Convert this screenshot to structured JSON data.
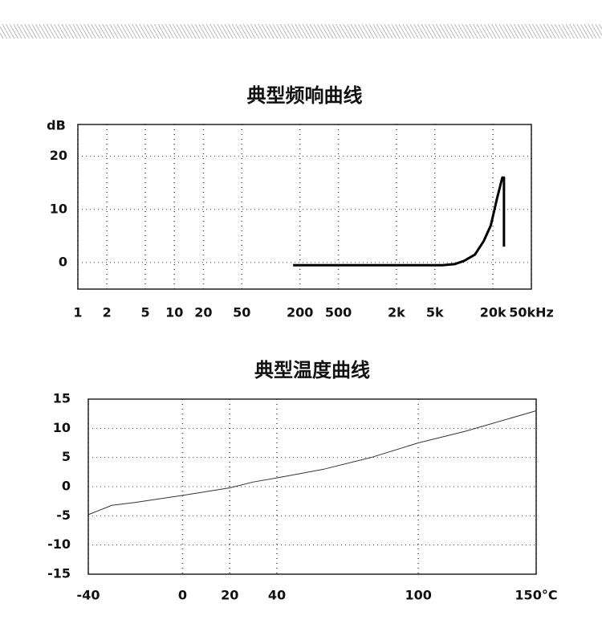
{
  "chart_data": [
    {
      "type": "line",
      "title": "典型频响曲线",
      "y_label": "dB",
      "xscale": "log",
      "xlim": [
        1,
        50000
      ],
      "ylim": [
        -5,
        26
      ],
      "xticks": [
        1,
        2,
        5,
        10,
        20,
        50,
        200,
        500,
        {
          "value": 2000,
          "label": "2k"
        },
        {
          "value": 5000,
          "label": "5k"
        },
        {
          "value": 20000,
          "label": "20k"
        },
        {
          "value": 50000,
          "label": "50kHz"
        }
      ],
      "yticks": [
        0,
        10,
        20
      ],
      "grid": true,
      "x": [
        170,
        1000,
        6000,
        8000,
        10000,
        13000,
        16000,
        19000,
        22000,
        25000,
        26000,
        26000
      ],
      "series": [
        {
          "color": "#000000",
          "values": [
            -0.5,
            -0.5,
            -0.5,
            -0.3,
            0.3,
            1.5,
            4,
            7,
            12,
            16,
            16,
            3
          ]
        }
      ]
    },
    {
      "type": "line",
      "title": "典型温度曲线",
      "xlim": [
        -40,
        150
      ],
      "ylim": [
        -15,
        15
      ],
      "xticks": [
        -40,
        0,
        20,
        40,
        100,
        {
          "value": 150,
          "label": "150°C"
        }
      ],
      "yticks": [
        15,
        10,
        5,
        0,
        -5,
        -10,
        -15
      ],
      "grid": true,
      "x": [
        -40,
        -30,
        -20,
        0,
        20,
        30,
        40,
        60,
        80,
        100,
        120,
        150
      ],
      "series": [
        {
          "color": "#333333",
          "values": [
            -4.8,
            -3.2,
            -2.7,
            -1.5,
            -0.2,
            0.8,
            1.5,
            3,
            5,
            7.5,
            9.5,
            13
          ]
        }
      ]
    }
  ]
}
